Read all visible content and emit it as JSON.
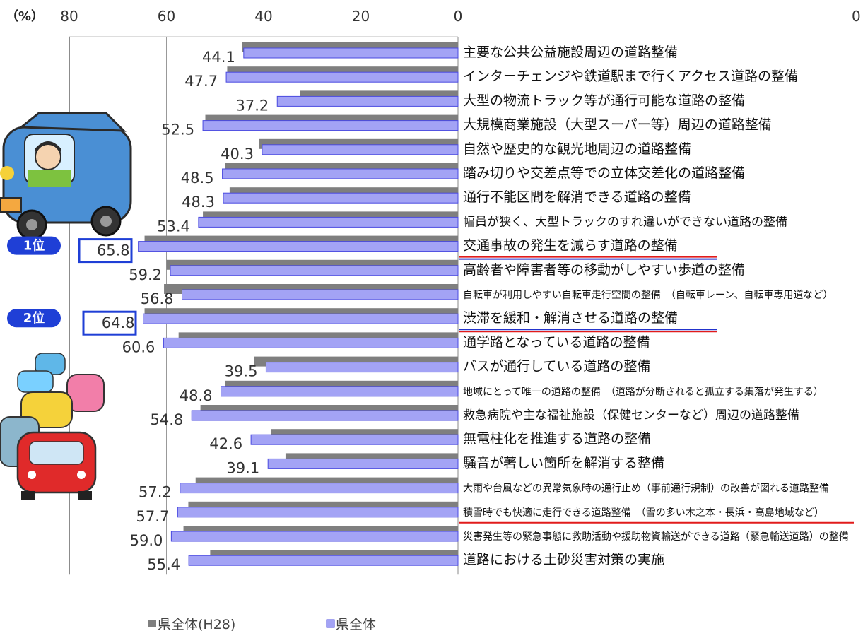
{
  "unit_label": "（%）",
  "right_tick": "0",
  "legend": [
    "県全体(H28)",
    "県全体"
  ],
  "colors": {
    "prev": "#7f7f7f",
    "curr": "#a3a3f5",
    "curr_edge": "#4a4ae0",
    "rank_badge": "#1f3fd6",
    "underline_red": "#e11b1b",
    "underline_blue": "#2233cc",
    "grid": "#999999"
  },
  "ranks": [
    {
      "label": "1位",
      "index": 8
    },
    {
      "label": "2位",
      "index": 11
    }
  ],
  "chart_data": {
    "type": "bar",
    "orientation": "horizontal",
    "x_axis": "reversed",
    "xlim": [
      80,
      0
    ],
    "ticks": [
      80,
      60,
      40,
      20,
      0
    ],
    "categories": [
      "主要な公共公益施設周辺の道路整備",
      "インターチェンジや鉄道駅まで行くアクセス道路の整備",
      "大型の物流トラック等が通行可能な道路の整備",
      "大規模商業施設（大型スーパー等）周辺の道路整備",
      "自然や歴史的な観光地周辺の道路整備",
      "踏み切りや交差点等での立体交差化の道路整備",
      "通行不能区間を解消できる道路の整備",
      "幅員が狭く、大型トラックのすれ違いができない道路の整備",
      "交通事故の発生を減らす道路の整備",
      "高齢者や障害者等の移動がしやすい歩道の整備",
      "自転車が利用しやすい自転車走行空間の整備　（自転車レーン、自転車専用道など）",
      "渋滞を緩和・解消させる道路の整備",
      "通学路となっている道路の整備",
      "バスが通行している道路の整備",
      "地域にとって唯一の道路の整備　（道路が分断されると孤立する集落が発生する）",
      "救急病院や主な福祉施設（保健センターなど）周辺の道路整備",
      "無電柱化を推進する道路の整備",
      "騒音が著しい箇所を解消する整備",
      "大雨や台風などの異常気象時の通行止め（事前通行規制）の改善が図れる道路整備",
      "積雪時でも快適に走行できる道路整備　（雪の多い木之本・長浜・高島地域など）",
      "災害発生等の緊急事態に救助活動や援助物資輸送ができる道路（緊急輸送道路）の整備",
      "道路における土砂災害対策の実施"
    ],
    "labels": [
      "44.1",
      "47.7",
      "37.2",
      "52.5",
      "40.3",
      "48.5",
      "48.3",
      "53.4",
      "65.8",
      "59.2",
      "56.8",
      "64.8",
      "60.6",
      "39.5",
      "48.8",
      "54.8",
      "42.6",
      "39.1",
      "57.2",
      "57.7",
      "59.0",
      "55.4"
    ],
    "series": [
      {
        "name": "県全体(H28)",
        "values": [
          44.5,
          47.5,
          32.5,
          52.0,
          41.0,
          48.0,
          47.0,
          52.5,
          64.5,
          60.0,
          60.5,
          64.5,
          57.5,
          42.0,
          48.0,
          53.0,
          38.5,
          35.5,
          54.0,
          55.5,
          56.5,
          51.0
        ]
      },
      {
        "name": "県全体",
        "values": [
          44.1,
          47.7,
          37.2,
          52.5,
          40.3,
          48.5,
          48.3,
          53.4,
          65.8,
          59.2,
          56.8,
          64.8,
          60.6,
          39.5,
          48.8,
          54.8,
          42.6,
          39.1,
          57.2,
          57.7,
          59.0,
          55.4
        ]
      }
    ],
    "highlight": [
      {
        "index": 8,
        "underline": [
          "red",
          "blue"
        ]
      },
      {
        "index": 11,
        "underline": [
          "blue",
          "red"
        ]
      },
      {
        "index": 19,
        "underline": [
          "red"
        ]
      }
    ]
  }
}
